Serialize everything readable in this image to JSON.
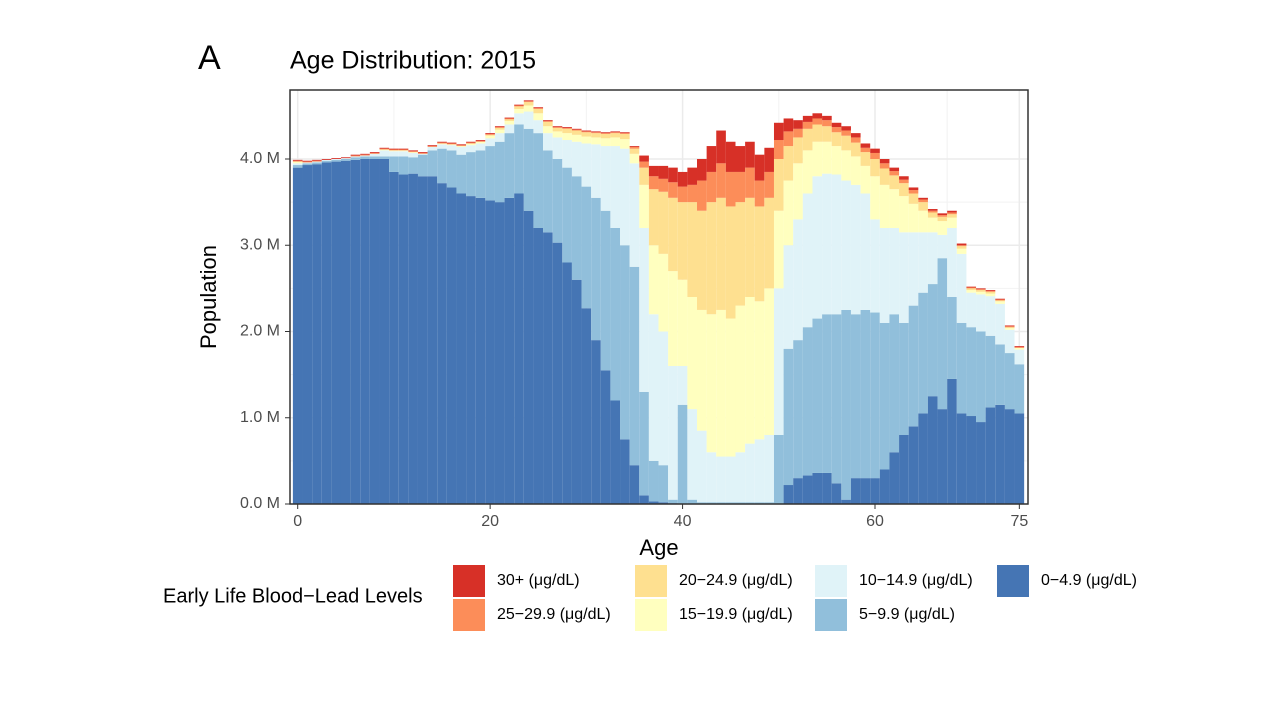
{
  "chart_data": {
    "type": "stacked_bar",
    "tag": "A",
    "title": "Age Distribution: 2015",
    "x_label": "Age",
    "y_label": "Population",
    "legend_title": "Early Life Blood−Lead Levels",
    "x": [
      0,
      1,
      2,
      3,
      4,
      5,
      6,
      7,
      8,
      9,
      10,
      11,
      12,
      13,
      14,
      15,
      16,
      17,
      18,
      19,
      20,
      21,
      22,
      23,
      24,
      25,
      26,
      27,
      28,
      29,
      30,
      31,
      32,
      33,
      34,
      35,
      36,
      37,
      38,
      39,
      40,
      41,
      42,
      43,
      44,
      45,
      46,
      47,
      48,
      49,
      50,
      51,
      52,
      53,
      54,
      55,
      56,
      57,
      58,
      59,
      60,
      61,
      62,
      63,
      64,
      65,
      66,
      67,
      68,
      69,
      70,
      71,
      72,
      73,
      74,
      75
    ],
    "xlim": [
      -0.8,
      75.9
    ],
    "xticks": [
      0,
      20,
      40,
      60,
      75
    ],
    "ylim": [
      0,
      4.8
    ],
    "yticks": [
      {
        "value": 0,
        "label": "0.0 M"
      },
      {
        "value": 1,
        "label": "1.0 M"
      },
      {
        "value": 2,
        "label": "2.0 M"
      },
      {
        "value": 3,
        "label": "3.0 M"
      },
      {
        "value": 4,
        "label": "4.0 M"
      }
    ],
    "grid": true,
    "series": [
      {
        "name": "0−4.9 (μg/dL)",
        "color": "#4575b4",
        "values": [
          3.9,
          3.93,
          3.94,
          3.96,
          3.97,
          3.98,
          3.99,
          4.0,
          4.0,
          4.0,
          3.85,
          3.82,
          3.83,
          3.8,
          3.8,
          3.72,
          3.67,
          3.6,
          3.57,
          3.55,
          3.52,
          3.5,
          3.55,
          3.6,
          3.4,
          3.2,
          3.15,
          3.03,
          2.8,
          2.6,
          2.27,
          1.9,
          1.55,
          1.2,
          0.75,
          0.45,
          0.1,
          0.03,
          0.02,
          0.01,
          0,
          0,
          0,
          0,
          0,
          0,
          0,
          0,
          0,
          0,
          0,
          0.22,
          0.3,
          0.33,
          0.36,
          0.36,
          0.24,
          0.05,
          0.3,
          0.3,
          0.3,
          0.4,
          0.6,
          0.8,
          0.9,
          1.05,
          1.25,
          1.1,
          1.45,
          1.05,
          1.02,
          0.95,
          1.12,
          1.15,
          1.1,
          1.05
        ]
      },
      {
        "name": "5−9.9 (μg/dL)",
        "color": "#91bfdb",
        "values": [
          0.03,
          0.02,
          0.02,
          0.02,
          0.02,
          0.02,
          0.03,
          0.03,
          0.03,
          0.03,
          0.18,
          0.21,
          0.19,
          0.25,
          0.3,
          0.4,
          0.43,
          0.45,
          0.51,
          0.55,
          0.63,
          0.7,
          0.75,
          0.8,
          0.95,
          1.1,
          0.95,
          0.97,
          1.1,
          1.2,
          1.41,
          1.65,
          1.85,
          2.0,
          2.25,
          2.3,
          1.2,
          0.47,
          0.43,
          0.04,
          1.15,
          0.05,
          0.02,
          0.02,
          0.02,
          0.02,
          0.02,
          0.02,
          0.02,
          0.02,
          0.8,
          1.58,
          1.6,
          1.72,
          1.79,
          1.84,
          1.96,
          2.2,
          1.9,
          1.95,
          1.92,
          1.7,
          1.6,
          1.3,
          1.4,
          1.4,
          1.3,
          1.75,
          0.95,
          1.05,
          1.03,
          1.05,
          0.83,
          0.7,
          0.65,
          0.57
        ]
      },
      {
        "name": "10−14.9 (μg/dL)",
        "color": "#e0f3f8",
        "values": [
          0.02,
          0.01,
          0.01,
          0.01,
          0.01,
          0.01,
          0.01,
          0.01,
          0.03,
          0.07,
          0.06,
          0.06,
          0.05,
          0.01,
          0.04,
          0.05,
          0.06,
          0.09,
          0.08,
          0.08,
          0.09,
          0.1,
          0.1,
          0.13,
          0.2,
          0.15,
          0.2,
          0.25,
          0.32,
          0.4,
          0.5,
          0.62,
          0.75,
          0.95,
          1.12,
          1.2,
          1.9,
          1.7,
          1.55,
          1.55,
          0.45,
          1.05,
          0.83,
          0.58,
          0.53,
          0.53,
          0.58,
          0.68,
          0.73,
          0.78,
          1.7,
          1.2,
          1.4,
          1.55,
          1.65,
          1.63,
          1.62,
          1.5,
          1.5,
          1.35,
          1.08,
          1.1,
          1.0,
          1.05,
          0.85,
          0.7,
          0.6,
          0.27,
          0.8,
          0.8,
          0.4,
          0.43,
          0.46,
          0.47,
          0.27,
          0.17
        ]
      },
      {
        "name": "15−19.9 (μg/dL)",
        "color": "#ffffbf",
        "values": [
          0.02,
          0,
          0,
          0,
          0,
          0,
          0,
          0,
          0,
          0.01,
          0.01,
          0.01,
          0.01,
          0,
          0,
          0.01,
          0.01,
          0.01,
          0.02,
          0.02,
          0.03,
          0.04,
          0.04,
          0.05,
          0.07,
          0.08,
          0.08,
          0.07,
          0.08,
          0.08,
          0.08,
          0.08,
          0.09,
          0.1,
          0.11,
          0.11,
          0.5,
          0.8,
          0.9,
          1.1,
          1.0,
          1.3,
          1.4,
          1.6,
          1.7,
          1.6,
          1.7,
          1.7,
          1.6,
          1.7,
          0.9,
          0.75,
          0.65,
          0.5,
          0.4,
          0.37,
          0.33,
          0.35,
          0.33,
          0.32,
          0.5,
          0.5,
          0.45,
          0.42,
          0.33,
          0.25,
          0.17,
          0.16,
          0.12,
          0.06,
          0.03,
          0.03,
          0.03,
          0.03,
          0.02,
          0.02
        ]
      },
      {
        "name": "20−24.9 (μg/dL)",
        "color": "#fee090",
        "values": [
          0,
          0,
          0,
          0,
          0,
          0,
          0,
          0,
          0,
          0,
          0,
          0,
          0,
          0,
          0,
          0,
          0,
          0,
          0,
          0,
          0.01,
          0.02,
          0.02,
          0.03,
          0.04,
          0.05,
          0.05,
          0.04,
          0.05,
          0.05,
          0.05,
          0.05,
          0.05,
          0.05,
          0.06,
          0.06,
          0.2,
          0.65,
          0.72,
          0.85,
          0.9,
          1.1,
          1.15,
          1.3,
          1.3,
          1.3,
          1.2,
          1.15,
          1.1,
          1.05,
          0.6,
          0.4,
          0.3,
          0.25,
          0.2,
          0.18,
          0.16,
          0.17,
          0.16,
          0.16,
          0.2,
          0.19,
          0.16,
          0.15,
          0.12,
          0.1,
          0.06,
          0.05,
          0.04,
          0.03,
          0.02,
          0.02,
          0.02,
          0.01,
          0.01,
          0
        ]
      },
      {
        "name": "25−29.9 (μg/dL)",
        "color": "#fc8d59",
        "values": [
          0.01,
          0.01,
          0.01,
          0,
          0,
          0,
          0.01,
          0.01,
          0.01,
          0.01,
          0.01,
          0.01,
          0.01,
          0.01,
          0.01,
          0.01,
          0.01,
          0.01,
          0.01,
          0.01,
          0.01,
          0.01,
          0.01,
          0.01,
          0.01,
          0.01,
          0.01,
          0.01,
          0.01,
          0.01,
          0.01,
          0.01,
          0.01,
          0.01,
          0.01,
          0.02,
          0.07,
          0.15,
          0.15,
          0.18,
          0.18,
          0.2,
          0.35,
          0.35,
          0.4,
          0.4,
          0.35,
          0.35,
          0.3,
          0.3,
          0.22,
          0.17,
          0.1,
          0.08,
          0.07,
          0.07,
          0.06,
          0.06,
          0.06,
          0.05,
          0.07,
          0.06,
          0.05,
          0.04,
          0.04,
          0.03,
          0.02,
          0.02,
          0.02,
          0.01,
          0.01,
          0.01,
          0.01,
          0.01,
          0.01,
          0.01
        ]
      },
      {
        "name": "30+ (μg/dL)",
        "color": "#d73027",
        "values": [
          0.01,
          0.01,
          0.01,
          0.01,
          0.01,
          0.01,
          0.01,
          0.01,
          0.01,
          0.01,
          0.01,
          0.01,
          0.01,
          0.01,
          0.01,
          0.01,
          0.01,
          0.01,
          0.01,
          0.01,
          0.01,
          0.01,
          0.01,
          0.01,
          0.01,
          0.01,
          0.01,
          0.01,
          0.01,
          0.01,
          0.01,
          0.01,
          0.01,
          0.01,
          0.01,
          0.01,
          0.07,
          0.12,
          0.15,
          0.17,
          0.17,
          0.2,
          0.25,
          0.3,
          0.38,
          0.35,
          0.3,
          0.3,
          0.3,
          0.28,
          0.2,
          0.15,
          0.1,
          0.07,
          0.06,
          0.05,
          0.05,
          0.05,
          0.05,
          0.05,
          0.05,
          0.05,
          0.04,
          0.04,
          0.03,
          0.02,
          0.02,
          0.02,
          0.02,
          0.02,
          0.01,
          0.01,
          0.01,
          0.01,
          0.01,
          0.01
        ]
      }
    ]
  }
}
